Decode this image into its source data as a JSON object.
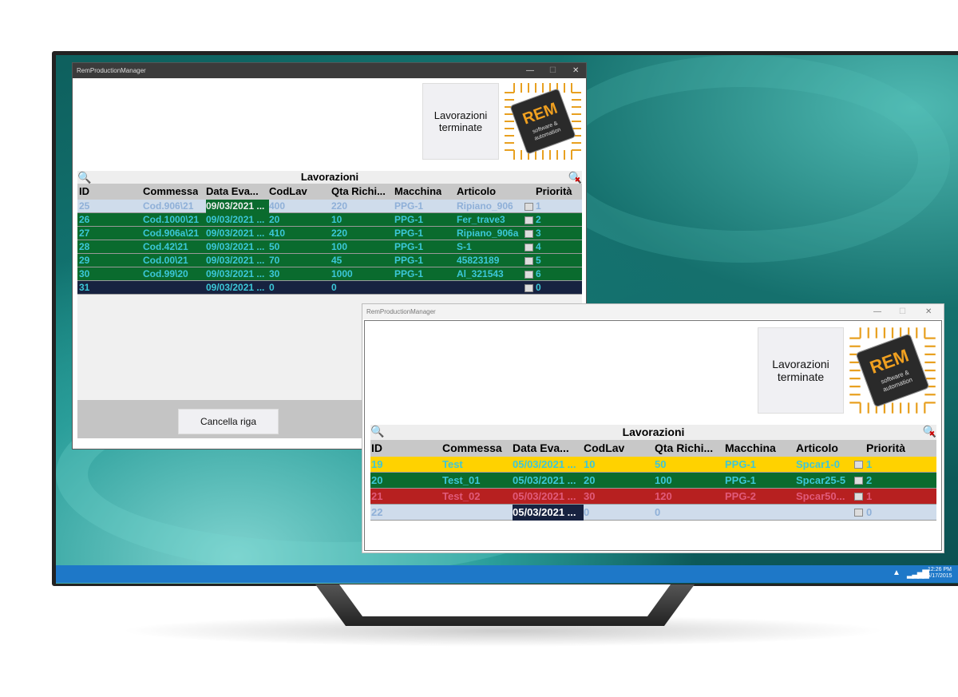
{
  "app_title": "RemProductionManager",
  "window_controls": {
    "minimize": "—",
    "maximize": "☐",
    "close": "✕"
  },
  "button_terminate": "Lavorazioni terminate",
  "logo": {
    "brand": "REM",
    "tagline": "software & automation"
  },
  "grid_title": "Lavorazioni",
  "columns": [
    "ID",
    "Commessa",
    "Data Eva...",
    "CodLav",
    "Qta Richi...",
    "Macchina",
    "Articolo",
    "Priorità"
  ],
  "colors": {
    "green": "#0a6b2e",
    "text_cyan": "#3cc7d8",
    "yellow": "#ffd200",
    "red": "#b72020",
    "selected_light": "#cfdceb",
    "navy": "#172240",
    "taskbar": "#1e78c8"
  },
  "window1": {
    "rows": [
      {
        "cells": [
          "25",
          "Cod.906\\21",
          "09/03/2021 ...",
          "400",
          "220",
          "PPG-1",
          "Ripiano_906",
          "1"
        ],
        "style": "light"
      },
      {
        "cells": [
          "26",
          "Cod.1000\\21",
          "09/03/2021 ...",
          "20",
          "10",
          "PPG-1",
          "Fer_trave3",
          "2"
        ],
        "style": "green"
      },
      {
        "cells": [
          "27",
          "Cod.906a\\21",
          "09/03/2021 ...",
          "410",
          "220",
          "PPG-1",
          "Ripiano_906a",
          "3"
        ],
        "style": "green"
      },
      {
        "cells": [
          "28",
          "Cod.42\\21",
          "09/03/2021 ...",
          "50",
          "100",
          "PPG-1",
          "S-1",
          "4"
        ],
        "style": "green"
      },
      {
        "cells": [
          "29",
          "Cod.00\\21",
          "09/03/2021 ...",
          "70",
          "45",
          "PPG-1",
          "45823189",
          "5"
        ],
        "style": "green"
      },
      {
        "cells": [
          "30",
          "Cod.99\\20",
          "09/03/2021 ...",
          "30",
          "1000",
          "PPG-1",
          "Al_321543",
          "6"
        ],
        "style": "green"
      },
      {
        "cells": [
          "31",
          "",
          "09/03/2021 ...",
          "0",
          "0",
          "",
          "",
          "0"
        ],
        "style": "navy"
      }
    ],
    "delete_button": "Cancella riga"
  },
  "window2": {
    "rows": [
      {
        "cells": [
          "19",
          "Test",
          "05/03/2021 ...",
          "10",
          "50",
          "PPG-1",
          "Spcar1-0",
          "1"
        ],
        "style": "yellow"
      },
      {
        "cells": [
          "20",
          "Test_01",
          "05/03/2021 ...",
          "20",
          "100",
          "PPG-1",
          "Spcar25-5",
          "2"
        ],
        "style": "green"
      },
      {
        "cells": [
          "21",
          "Test_02",
          "05/03/2021 ...",
          "30",
          "120",
          "PPG-2",
          "Spcar50...",
          "1"
        ],
        "style": "red"
      },
      {
        "cells": [
          "22",
          "",
          "05/03/2021 ...",
          "0",
          "0",
          "",
          "",
          "0"
        ],
        "style": "light"
      }
    ]
  },
  "taskbar": {
    "time": "12:26 PM",
    "date": "6/17/2015"
  }
}
